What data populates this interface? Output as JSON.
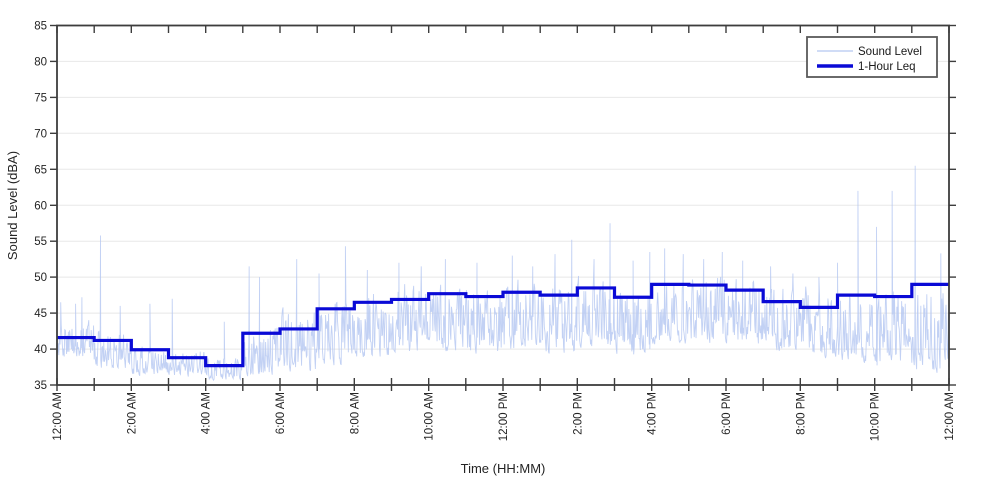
{
  "figure": {
    "background": "#ffffff",
    "axis_color": "#3d3d3d",
    "grid_color": "#e8e8e8",
    "text_color": "#242424"
  },
  "legend": {
    "position": "top-right",
    "entries": [
      {
        "label": "Sound Level"
      },
      {
        "label": "1-Hour Leq"
      }
    ]
  },
  "chart_data": {
    "type": "line",
    "title": "",
    "xlabel": "Time (HH:MM)",
    "ylabel": "Sound Level (dBA)",
    "ylim": [
      35,
      85
    ],
    "yticks": [
      35,
      40,
      45,
      50,
      55,
      60,
      65,
      70,
      75,
      80,
      85
    ],
    "grid": "horizontal",
    "x_hours_range": [
      0,
      24
    ],
    "xtick_hours": [
      0,
      2,
      4,
      6,
      8,
      10,
      12,
      14,
      16,
      18,
      20,
      22,
      24
    ],
    "xtick_labels": [
      "12:00 AM",
      "2:00 AM",
      "4:00 AM",
      "6:00 AM",
      "8:00 AM",
      "10:00 AM",
      "12:00 PM",
      "2:00 PM",
      "4:00 PM",
      "6:00 PM",
      "8:00 PM",
      "10:00 PM",
      "12:00 AM"
    ],
    "minor_xtick_every_hours": 1,
    "legend_position": "top-right",
    "series": [
      {
        "name": "Sound Level",
        "type": "noisy-line",
        "color": "#b3c6f1",
        "description": "High-rate sound level trace; dense noise band per hour with notable excursions",
        "hourly_envelope_dBA": [
          [
            38.5,
            45.0
          ],
          [
            37.0,
            43.5
          ],
          [
            36.2,
            41.0
          ],
          [
            36.0,
            40.5
          ],
          [
            35.6,
            39.5
          ],
          [
            36.0,
            44.0
          ],
          [
            36.5,
            46.5
          ],
          [
            37.5,
            48.0
          ],
          [
            38.5,
            49.5
          ],
          [
            39.0,
            50.0
          ],
          [
            39.5,
            50.5
          ],
          [
            39.0,
            50.0
          ],
          [
            39.5,
            50.5
          ],
          [
            39.0,
            50.5
          ],
          [
            40.0,
            51.0
          ],
          [
            39.0,
            50.5
          ],
          [
            40.5,
            51.5
          ],
          [
            40.5,
            51.5
          ],
          [
            40.0,
            51.0
          ],
          [
            39.5,
            50.0
          ],
          [
            38.5,
            49.5
          ],
          [
            38.0,
            49.5
          ],
          [
            37.5,
            49.5
          ],
          [
            36.5,
            50.0
          ]
        ],
        "notable_excursions_t_hours_vs_dBA": [
          [
            0.1,
            46.5
          ],
          [
            0.5,
            46.3
          ],
          [
            0.67,
            47.2
          ],
          [
            1.17,
            55.8
          ],
          [
            1.7,
            46.0
          ],
          [
            2.5,
            46.3
          ],
          [
            3.1,
            47.0
          ],
          [
            4.5,
            43.8
          ],
          [
            5.17,
            51.5
          ],
          [
            5.45,
            50.0
          ],
          [
            6.45,
            52.5
          ],
          [
            7.05,
            50.5
          ],
          [
            7.76,
            54.3
          ],
          [
            8.35,
            51.0
          ],
          [
            9.2,
            52.0
          ],
          [
            9.8,
            51.5
          ],
          [
            10.45,
            52.5
          ],
          [
            11.3,
            52.0
          ],
          [
            12.25,
            53.0
          ],
          [
            12.8,
            51.5
          ],
          [
            13.4,
            53.2
          ],
          [
            13.85,
            55.2
          ],
          [
            14.45,
            52.5
          ],
          [
            14.88,
            57.5
          ],
          [
            15.5,
            52.3
          ],
          [
            15.95,
            53.5
          ],
          [
            16.35,
            54.0
          ],
          [
            16.85,
            53.2
          ],
          [
            17.4,
            52.5
          ],
          [
            17.9,
            53.5
          ],
          [
            18.45,
            52.3
          ],
          [
            19.2,
            51.5
          ],
          [
            19.8,
            50.5
          ],
          [
            20.5,
            50.0
          ],
          [
            21.0,
            52.0
          ],
          [
            21.55,
            62.0
          ],
          [
            22.05,
            57.0
          ],
          [
            22.47,
            62.0
          ],
          [
            23.09,
            65.5
          ],
          [
            23.78,
            53.3
          ],
          [
            23.9,
            38.5
          ],
          [
            23.99,
            37.5
          ]
        ]
      },
      {
        "name": "1-Hour Leq",
        "type": "step",
        "color": "#0a0ad6",
        "hourly_leq_dBA": [
          41.6,
          41.2,
          39.9,
          38.8,
          37.7,
          42.2,
          42.8,
          45.6,
          46.5,
          46.9,
          47.7,
          47.3,
          47.9,
          47.5,
          48.5,
          47.2,
          49.0,
          48.9,
          48.2,
          46.6,
          45.8,
          47.5,
          47.3,
          49.0
        ]
      }
    ]
  }
}
